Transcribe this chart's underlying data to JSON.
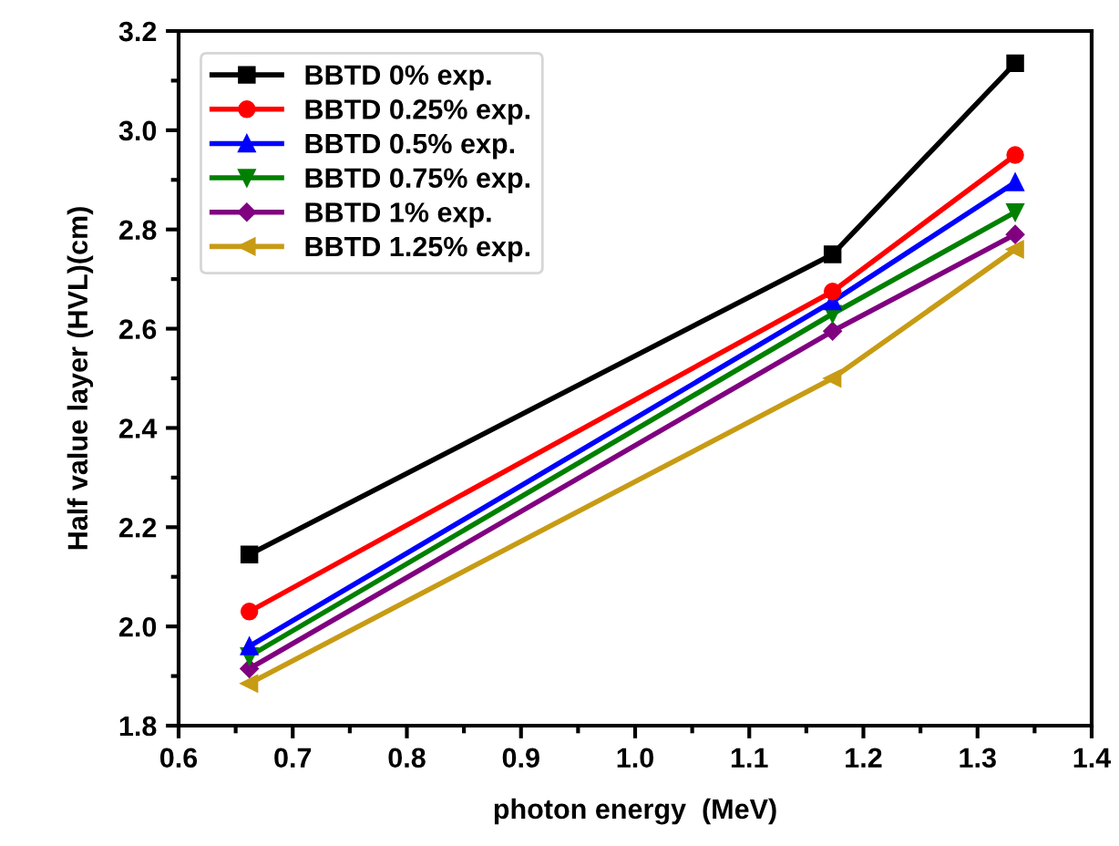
{
  "chart_data": {
    "type": "line",
    "xlabel": "photon energy  (MeV)",
    "ylabel": "Half value layer (HVL)(cm)",
    "x": [
      0.662,
      1.173,
      1.333
    ],
    "series": [
      {
        "name": "BBTD 0% exp.",
        "color": "#000000",
        "marker": "square",
        "values": [
          2.145,
          2.75,
          3.135
        ]
      },
      {
        "name": "BBTD 0.25% exp.",
        "color": "#ff0000",
        "marker": "circle",
        "values": [
          2.03,
          2.675,
          2.95
        ]
      },
      {
        "name": "BBTD 0.5% exp.",
        "color": "#0000ff",
        "marker": "triangle",
        "values": [
          1.96,
          2.655,
          2.895
        ]
      },
      {
        "name": "BBTD 0.75% exp.",
        "color": "#008000",
        "marker": "triangle_down",
        "values": [
          1.94,
          2.63,
          2.835
        ]
      },
      {
        "name": "BBTD 1% exp.",
        "color": "#800080",
        "marker": "diamond",
        "values": [
          1.915,
          2.595,
          2.79
        ]
      },
      {
        "name": "BBTD 1.25% exp.",
        "color": "#c89b14",
        "marker": "triangle_left",
        "values": [
          1.885,
          2.5,
          2.76
        ]
      }
    ],
    "xlim": [
      0.6,
      1.4
    ],
    "xticks": [
      {
        "value": 0.6,
        "label": "0.6"
      },
      {
        "value": 0.7,
        "label": "0.7"
      },
      {
        "value": 0.8,
        "label": "0.8"
      },
      {
        "value": 0.9,
        "label": "0.9"
      },
      {
        "value": 1.0,
        "label": "1.0"
      },
      {
        "value": 1.1,
        "label": "1.1"
      },
      {
        "value": 1.2,
        "label": "1.2"
      },
      {
        "value": 1.3,
        "label": "1.3"
      },
      {
        "value": 1.4,
        "label": "1.4"
      }
    ],
    "ylim": [
      1.8,
      3.2
    ],
    "yticks": [
      {
        "value": 1.8,
        "label": "1.8"
      },
      {
        "value": 2.0,
        "label": "2.0"
      },
      {
        "value": 2.2,
        "label": "2.2"
      },
      {
        "value": 2.4,
        "label": "2.4"
      },
      {
        "value": 2.6,
        "label": "2.6"
      },
      {
        "value": 2.8,
        "label": "2.8"
      },
      {
        "value": 3.0,
        "label": "3.0"
      },
      {
        "value": 3.2,
        "label": "3.2"
      }
    ],
    "grid": false,
    "legend": "top left",
    "line_style": "solid"
  }
}
